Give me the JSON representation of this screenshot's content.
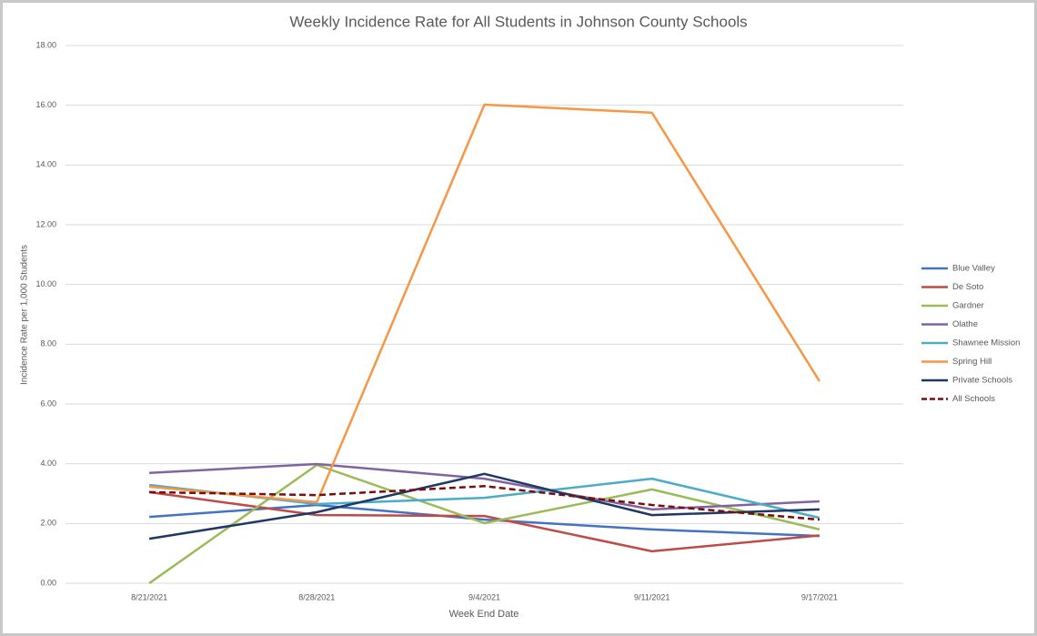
{
  "chart_data": {
    "type": "line",
    "title": "Weekly Incidence Rate for All Students in Johnson County Schools",
    "x_label": "Week End Date",
    "y_label": "Incidence Rate per 1,000 Students",
    "categories": [
      "8/21/2021",
      "8/28/2021",
      "9/4/2021",
      "9/11/2021",
      "9/17/2021"
    ],
    "ylim": [
      0,
      18
    ],
    "yticks": [
      {
        "value": 0,
        "label": "0.00"
      },
      {
        "value": 2,
        "label": "2.00"
      },
      {
        "value": 4,
        "label": "4.00"
      },
      {
        "value": 6,
        "label": "6.00"
      },
      {
        "value": 8,
        "label": "8.00"
      },
      {
        "value": 10,
        "label": "10.00"
      },
      {
        "value": 12,
        "label": "12.00"
      },
      {
        "value": 14,
        "label": "14.00"
      },
      {
        "value": 16,
        "label": "16.00"
      },
      {
        "value": 18,
        "label": "18.00"
      }
    ],
    "grid": true,
    "legend": "right",
    "series": [
      {
        "name": "Blue Valley",
        "color": "#4472c4",
        "values": [
          2.22,
          2.62,
          2.13,
          1.8,
          1.58
        ]
      },
      {
        "name": "De Soto",
        "color": "#be4b48",
        "values": [
          3.05,
          2.28,
          2.25,
          1.07,
          1.6
        ]
      },
      {
        "name": "Gardner",
        "color": "#9bbb59",
        "values": [
          0,
          3.96,
          2.01,
          3.14,
          1.8
        ]
      },
      {
        "name": "Olathe",
        "color": "#8064a2",
        "values": [
          3.69,
          3.99,
          3.5,
          2.47,
          2.74
        ]
      },
      {
        "name": "Shawnee Mission",
        "color": "#4bacc6",
        "values": [
          3.29,
          2.65,
          2.86,
          3.5,
          2.19
        ]
      },
      {
        "name": "Spring Hill",
        "color": "#f79646",
        "values": [
          3.23,
          2.71,
          16.02,
          15.75,
          6.76
        ]
      },
      {
        "name": "Private Schools",
        "color": "#1f3864",
        "values": [
          1.49,
          2.38,
          3.66,
          2.28,
          2.47
        ]
      },
      {
        "name": "All Schools",
        "color": "#7b0c0c",
        "dashed": true,
        "values": [
          3.05,
          2.95,
          3.25,
          2.62,
          2.13
        ]
      }
    ]
  }
}
